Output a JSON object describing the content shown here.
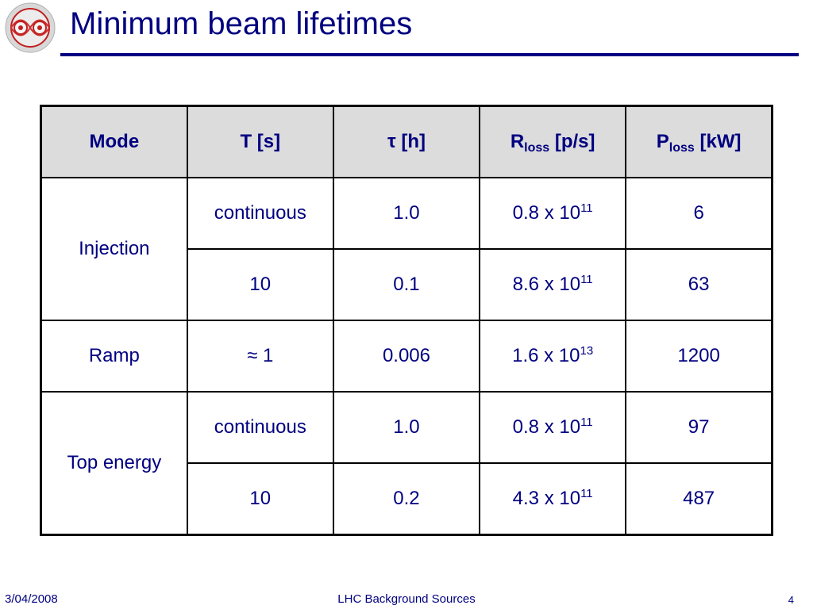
{
  "slide": {
    "title": "Minimum beam lifetimes",
    "logo_icon": "lhc-magnet-logo-icon"
  },
  "table": {
    "headers": [
      {
        "main": "Mode",
        "sub": "",
        "tail": ""
      },
      {
        "main": "T [s]",
        "sub": "",
        "tail": ""
      },
      {
        "main": "τ [h]",
        "sub": "",
        "tail": ""
      },
      {
        "main": "R",
        "sub": "loss",
        "tail": " [p/s]"
      },
      {
        "main": "P",
        "sub": "loss",
        "tail": " [kW]"
      }
    ],
    "rows": [
      {
        "mode": "Injection",
        "T": "continuous",
        "tau": "1.0",
        "R_base": "0.8 x 10",
        "R_exp": "11",
        "P": "6"
      },
      {
        "T": "10",
        "tau": "0.1",
        "R_base": "8.6 x 10",
        "R_exp": "11",
        "P": "63"
      },
      {
        "mode": "Ramp",
        "T": "≈ 1",
        "tau": "0.006",
        "R_base": "1.6 x 10",
        "R_exp": "13",
        "P": "1200"
      },
      {
        "mode": "Top energy",
        "T": "continuous",
        "tau": "1.0",
        "R_base": "0.8 x 10",
        "R_exp": "11",
        "P": "97"
      },
      {
        "T": "10",
        "tau": "0.2",
        "R_base": "4.3 x 10",
        "R_exp": "11",
        "P": "487"
      }
    ]
  },
  "footer": {
    "date": "3/04/2008",
    "center": "LHC Background Sources",
    "page": "4"
  },
  "colors": {
    "title": "#000080",
    "header_bg": "#dcdcdc",
    "text": "#000080"
  }
}
